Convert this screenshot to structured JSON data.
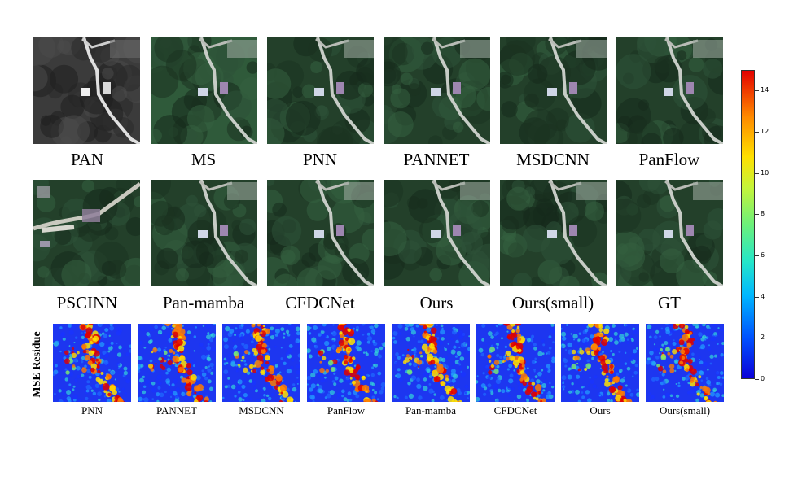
{
  "row1": [
    {
      "label": "PAN",
      "kind": "pan"
    },
    {
      "label": "MS",
      "kind": "ms"
    },
    {
      "label": "PNN",
      "kind": "fused"
    },
    {
      "label": "PANNET",
      "kind": "fused"
    },
    {
      "label": "MSDCNN",
      "kind": "fused"
    },
    {
      "label": "PanFlow",
      "kind": "fused"
    }
  ],
  "row2": [
    {
      "label": "PSCINN",
      "kind": "zoom"
    },
    {
      "label": "Pan-mamba",
      "kind": "fused"
    },
    {
      "label": "CFDCNet",
      "kind": "fused"
    },
    {
      "label": "Ours",
      "kind": "fused"
    },
    {
      "label": "Ours(small)",
      "kind": "fused"
    },
    {
      "label": "GT",
      "kind": "fused"
    }
  ],
  "residue_title": "MSE Residue",
  "residues": [
    "PNN",
    "PANNET",
    "MSDCNN",
    "PanFlow",
    "Pan-mamba",
    "CFDCNet",
    "Ours",
    "Ours(small)"
  ],
  "colorbar": {
    "min": 0,
    "max": 15,
    "tick_labels": [
      "0",
      "2",
      "4",
      "6",
      "8",
      "10",
      "12",
      "14"
    ],
    "tick_values": [
      0,
      2,
      4,
      6,
      8,
      10,
      12,
      14
    ],
    "colors": [
      "#0b00d8",
      "#00b7ff",
      "#6cf07a",
      "#ffe000",
      "#e30000"
    ]
  }
}
